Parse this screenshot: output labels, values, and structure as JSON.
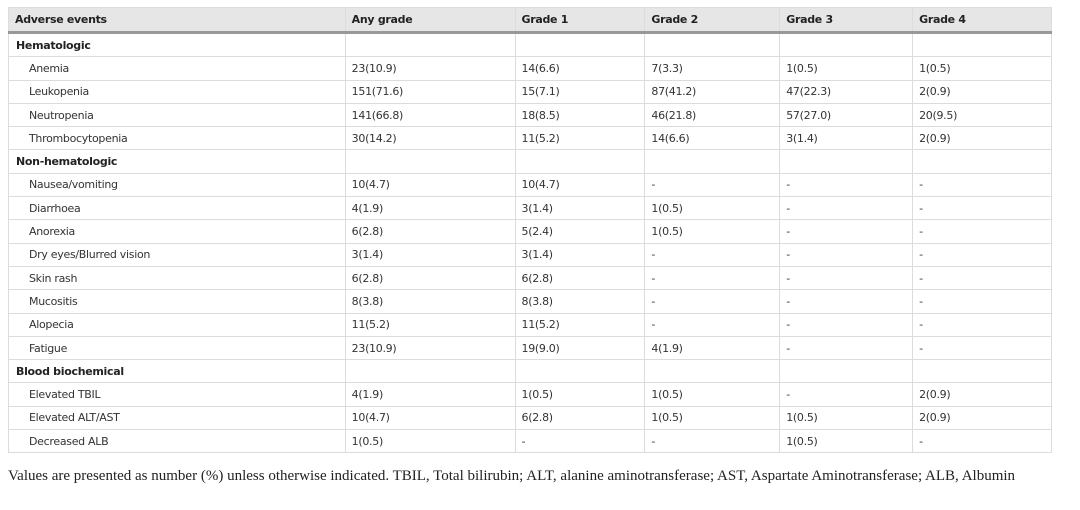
{
  "table": {
    "columns": [
      "Adverse events",
      "Any grade",
      "Grade 1",
      "Grade 2",
      "Grade 3",
      "Grade 4"
    ],
    "rows": [
      [
        "Hematologic"
      ],
      [
        "Anemia",
        "23(10.9)",
        "14(6.6)",
        "7(3.3)",
        "1(0.5)",
        "1(0.5)"
      ],
      [
        "Leukopenia",
        "151(71.6)",
        "15(7.1)",
        "87(41.2)",
        "47(22.3)",
        "2(0.9)"
      ],
      [
        "Neutropenia",
        "141(66.8)",
        "18(8.5)",
        "46(21.8)",
        "57(27.0)",
        "20(9.5)"
      ],
      [
        "Thrombocytopenia",
        "30(14.2)",
        "11(5.2)",
        "14(6.6)",
        "3(1.4)",
        "2(0.9)"
      ],
      [
        "Non-hematologic"
      ],
      [
        "Nausea/vomiting",
        "10(4.7)",
        "10(4.7)",
        "-",
        "-",
        "-"
      ],
      [
        "Diarrhoea",
        "4(1.9)",
        "3(1.4)",
        "1(0.5)",
        "-",
        "-"
      ],
      [
        "Anorexia",
        "6(2.8)",
        "5(2.4)",
        "1(0.5)",
        "-",
        "-"
      ],
      [
        "Dry eyes/Blurred vision",
        "3(1.4)",
        "3(1.4)",
        "-",
        "-",
        "-"
      ],
      [
        "Skin rash",
        "6(2.8)",
        "6(2.8)",
        "-",
        "-",
        "-"
      ],
      [
        "Mucositis",
        "8(3.8)",
        "8(3.8)",
        "-",
        "-",
        "-"
      ],
      [
        "Alopecia",
        "11(5.2)",
        "11(5.2)",
        "-",
        "-",
        "-"
      ],
      [
        "Fatigue",
        "23(10.9)",
        "19(9.0)",
        "4(1.9)",
        "-",
        "-"
      ],
      [
        "Blood biochemical"
      ],
      [
        "Elevated TBIL",
        "4(1.9)",
        "1(0.5)",
        "1(0.5)",
        "-",
        "2(0.9)"
      ],
      [
        "Elevated ALT/AST",
        "10(4.7)",
        "6(2.8)",
        "1(0.5)",
        "1(0.5)",
        "2(0.9)"
      ],
      [
        "Decreased ALB",
        "1(0.5)",
        "-",
        "-",
        "1(0.5)",
        "-"
      ]
    ]
  },
  "footnote": "Values are presented as number (%) unless otherwise indicated. TBIL, Total bilirubin; ALT, alanine aminotransferase; AST, Aspartate Aminotransferase; ALB, Albumin"
}
